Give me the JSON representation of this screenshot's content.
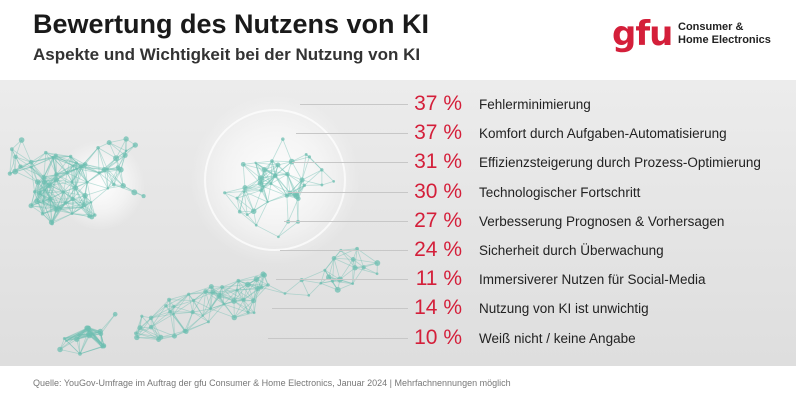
{
  "header": {
    "title": "Bewertung des Nutzens von KI",
    "subtitle": "Aspekte und Wichtigkeit bei der Nutzung von KI"
  },
  "logo": {
    "mark": "gfu",
    "text": "Consumer &\nHome Electronics"
  },
  "colors": {
    "accent": "#d41f3a",
    "network": "#6fbfb2"
  },
  "chart_data": {
    "type": "bar",
    "categories": [
      "Fehlerminimierung",
      "Komfort durch Aufgaben-Automatisierung",
      "Effizienzsteigerung durch Prozess-Optimierung",
      "Technologischer Fortschritt",
      "Verbesserung Prognosen & Vorhersagen",
      "Sicherheit durch Überwachung",
      "Immersiverer Nutzen für Social-Media",
      "Nutzung von KI ist unwichtig",
      "Weiß nicht / keine Angabe"
    ],
    "values": [
      37,
      37,
      31,
      30,
      27,
      24,
      11,
      14,
      10
    ],
    "value_labels": [
      "37 %",
      "37 %",
      "31 %",
      "30 %",
      "27 %",
      "24 %",
      "11 %",
      "14 %",
      "10 %"
    ],
    "unit": "%"
  },
  "footer": {
    "source": "Quelle:  YouGov-Umfrage im Auftrag der gfu Consumer & Home Electronics, Januar 2024 | Mehrfachnennungen möglich"
  }
}
